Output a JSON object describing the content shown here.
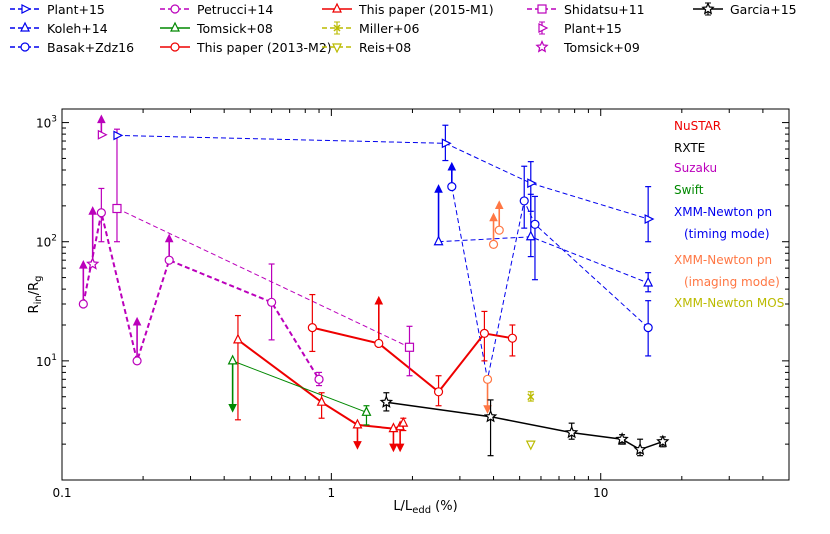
{
  "chart_data": {
    "type": "scatter",
    "title": "",
    "xlabel": "L/L",
    "xlabel_sub": "edd",
    "xlabel_unit": " (%)",
    "ylabel": "R",
    "ylabel_sub1": "in",
    "ylabel_slash": "/R",
    "ylabel_sub2": "g",
    "x_scale": "log",
    "y_scale": "log",
    "xlim": [
      0.1,
      50
    ],
    "ylim": [
      1,
      1300
    ],
    "xticks": [
      {
        "value": 0.1,
        "label": "0.1"
      },
      {
        "value": 1,
        "label": "1"
      },
      {
        "value": 10,
        "label": "10"
      }
    ],
    "yticks": [
      {
        "value": 10,
        "base": "10",
        "exp": "1"
      },
      {
        "value": 100,
        "base": "10",
        "exp": "2"
      },
      {
        "value": 1000,
        "base": "10",
        "exp": "3"
      }
    ],
    "legend": [
      {
        "label": "Plant+15",
        "color": "#0000ee",
        "marker": "tri-right",
        "dash": true,
        "line": true,
        "err": false
      },
      {
        "label": "Koleh+14",
        "color": "#0000ee",
        "marker": "tri-up",
        "dash": true,
        "line": true,
        "err": false
      },
      {
        "label": "Basak+Zdz16",
        "color": "#0000ee",
        "marker": "circle",
        "dash": true,
        "line": true,
        "err": false
      },
      {
        "label": "Petrucci+14",
        "color": "#bb00bb",
        "marker": "circle",
        "dash": true,
        "line": true,
        "err": false
      },
      {
        "label": "Tomsick+08",
        "color": "#008800",
        "marker": "tri-up",
        "dash": false,
        "line": true,
        "err": false
      },
      {
        "label": "This paper (2013-M2)",
        "color": "#ee0000",
        "marker": "circle",
        "dash": false,
        "line": true,
        "err": false
      },
      {
        "label": "This paper (2015-M1)",
        "color": "#ee0000",
        "marker": "tri-up",
        "dash": false,
        "line": true,
        "err": false
      },
      {
        "label": "Miller+06",
        "color": "#bbbb00",
        "marker": "x",
        "dash": true,
        "line": true,
        "err": true
      },
      {
        "label": "Reis+08",
        "color": "#bbbb00",
        "marker": "tri-down",
        "dash": true,
        "line": true,
        "err": false
      },
      {
        "label": "Shidatsu+11",
        "color": "#bb00bb",
        "marker": "square",
        "dash": true,
        "line": true,
        "err": false
      },
      {
        "label": "Plant+15",
        "color": "#bb00bb",
        "marker": "tri-right",
        "dash": false,
        "line": false,
        "err": true
      },
      {
        "label": "Tomsick+09",
        "color": "#bb00bb",
        "marker": "star",
        "dash": false,
        "line": false,
        "err": false
      },
      {
        "label": "Garcia+15",
        "color": "#000000",
        "marker": "star",
        "dash": false,
        "line": true,
        "err": true
      }
    ],
    "annotations": [
      {
        "text": "NuSTAR",
        "color": "#ee0000"
      },
      {
        "text": "RXTE",
        "color": "#000000"
      },
      {
        "text": "Suzaku",
        "color": "#bb00bb"
      },
      {
        "text": "Swift",
        "color": "#008800"
      },
      {
        "text": "XMM-Newton pn",
        "color": "#0000ee"
      },
      {
        "text": "(timing mode)",
        "color": "#0000ee"
      },
      {
        "text": "XMM-Newton pn",
        "color": "#ff7744"
      },
      {
        "text": "(imaging mode)",
        "color": "#ff7744"
      },
      {
        "text": "XMM-Newton MOS",
        "color": "#bbbb00"
      }
    ],
    "series": [
      {
        "name": "Petrucci+14",
        "color": "#bb00bb",
        "marker": "circle",
        "line": "dashed",
        "lw": 2,
        "points": [
          {
            "x": 0.12,
            "y": 30,
            "type": "lower",
            "to": 60
          },
          {
            "x": 0.14,
            "y": 175,
            "lo": 100,
            "hi": 280
          },
          {
            "x": 0.19,
            "y": 10,
            "type": "lower",
            "to": 20
          },
          {
            "x": 0.25,
            "y": 70,
            "type": "lower",
            "to": 100
          },
          {
            "x": 0.6,
            "y": 31,
            "lo": 15,
            "hi": 65
          },
          {
            "x": 0.9,
            "y": 7,
            "lo": 6.2,
            "hi": 8
          }
        ]
      },
      {
        "name": "Shidatsu+11",
        "color": "#bb00bb",
        "marker": "square",
        "line": "dashed",
        "lw": 1,
        "points": [
          {
            "x": 0.16,
            "y": 190,
            "lo": 100,
            "hi": 880
          },
          {
            "x": 1.95,
            "y": 13,
            "lo": 7.5,
            "hi": 19.5
          }
        ]
      },
      {
        "name": "Plant+15 (Suzaku)",
        "color": "#bb00bb",
        "marker": "tri-right",
        "line": "none",
        "points": [
          {
            "x": 0.14,
            "y": 790,
            "type": "lower",
            "to": 1000
          }
        ]
      },
      {
        "name": "Tomsick+09",
        "color": "#bb00bb",
        "marker": "star",
        "line": "none",
        "points": [
          {
            "x": 0.13,
            "y": 65,
            "type": "lower",
            "to": 170
          }
        ]
      },
      {
        "name": "Plant+15",
        "color": "#0000ee",
        "marker": "tri-right",
        "line": "dashed",
        "lw": 1,
        "points": [
          {
            "x": 0.16,
            "y": 780
          },
          {
            "x": 2.65,
            "y": 670,
            "lo": 480,
            "hi": 950
          },
          {
            "x": 5.5,
            "y": 310,
            "lo": 180,
            "hi": 470
          },
          {
            "x": 15,
            "y": 155,
            "lo": 100,
            "hi": 290
          }
        ]
      },
      {
        "name": "Koleh+14",
        "color": "#0000ee",
        "marker": "tri-up",
        "line": "dashed",
        "lw": 1,
        "points": [
          {
            "x": 2.5,
            "y": 100,
            "type": "lower",
            "to": 260
          },
          {
            "x": 5.5,
            "y": 110,
            "lo": 75,
            "hi": 250
          },
          {
            "x": 15,
            "y": 45,
            "lo": 38,
            "hi": 55
          }
        ]
      },
      {
        "name": "Basak+Zdz16",
        "color": "#0000ee",
        "marker": "circle",
        "line": "dashed",
        "lw": 1,
        "points": [
          {
            "x": 2.8,
            "y": 290,
            "type": "lower",
            "to": 400
          },
          {
            "x": 3.8,
            "y": 7,
            "type": "xonly"
          },
          {
            "x": 5.2,
            "y": 220,
            "lo": 130,
            "hi": 430
          },
          {
            "x": 5.7,
            "y": 140,
            "lo": 48,
            "hi": 240
          },
          {
            "x": 15,
            "y": 19,
            "lo": 11,
            "hi": 32
          }
        ]
      },
      {
        "name": "XMM-Newton pn (imaging mode)",
        "color": "#ff7744",
        "marker": "circle",
        "line": "none",
        "lw": 1,
        "points": [
          {
            "x": 3.8,
            "y": 7,
            "type": "upper",
            "to": 4.2
          },
          {
            "x": 4.0,
            "y": 95,
            "type": "lower",
            "to": 150
          },
          {
            "x": 4.2,
            "y": 125,
            "type": "lower",
            "to": 190
          }
        ]
      },
      {
        "name": "This paper (2013-M2)",
        "color": "#ee0000",
        "marker": "circle",
        "line": "solid",
        "lw": 2,
        "points": [
          {
            "x": 0.85,
            "y": 19,
            "lo": 12,
            "hi": 36
          },
          {
            "x": 1.5,
            "y": 14,
            "type": "lower",
            "to": 30
          },
          {
            "x": 2.5,
            "y": 5.5,
            "lo": 4.2,
            "hi": 7.5
          },
          {
            "x": 3.7,
            "y": 17,
            "lo": 10,
            "hi": 26
          },
          {
            "x": 4.7,
            "y": 15.5,
            "lo": 11,
            "hi": 20
          }
        ]
      },
      {
        "name": "This paper (2015-M1)",
        "color": "#ee0000",
        "marker": "tri-up",
        "line": "solid",
        "lw": 2,
        "points": [
          {
            "x": 0.45,
            "y": 15,
            "lo": 3.2,
            "hi": 24
          },
          {
            "x": 0.92,
            "y": 4.5,
            "lo": 3.3,
            "hi": 5.4
          },
          {
            "x": 1.25,
            "y": 2.9,
            "type": "upper",
            "to": 2.1
          },
          {
            "x": 1.7,
            "y": 2.7,
            "type": "upper",
            "to": 2.0
          },
          {
            "x": 1.8,
            "y": 2.8,
            "type": "upper",
            "to": 2.0
          },
          {
            "x": 1.85,
            "y": 3.0,
            "lo": 2.6,
            "hi": 3.3
          }
        ]
      },
      {
        "name": "Tomsick+08",
        "color": "#008800",
        "marker": "tri-up",
        "line": "solid",
        "lw": 1,
        "points": [
          {
            "x": 0.43,
            "y": 10,
            "type": "upper",
            "to": 4.3
          },
          {
            "x": 1.35,
            "y": 3.7,
            "lo": 2.9,
            "hi": 4.2
          }
        ]
      },
      {
        "name": "Garcia+15",
        "color": "#000000",
        "marker": "star",
        "line": "solid",
        "lw": 1.5,
        "points": [
          {
            "x": 1.6,
            "y": 4.5,
            "lo": 3.8,
            "hi": 5.4
          },
          {
            "x": 3.9,
            "y": 3.4,
            "lo": 1.6,
            "hi": 4.7
          },
          {
            "x": 7.8,
            "y": 2.5,
            "lo": 2.2,
            "hi": 3.0
          },
          {
            "x": 12,
            "y": 2.2,
            "lo": 2.0,
            "hi": 2.4
          },
          {
            "x": 14,
            "y": 1.8,
            "lo": 1.6,
            "hi": 2.2
          },
          {
            "x": 17,
            "y": 2.1,
            "lo": 1.9,
            "hi": 2.3
          }
        ]
      },
      {
        "name": "Miller+06",
        "color": "#bbbb00",
        "marker": "x",
        "line": "none",
        "points": [
          {
            "x": 5.5,
            "y": 5.0,
            "lo": 4.6,
            "hi": 5.5
          }
        ]
      },
      {
        "name": "Reis+08",
        "color": "#bbbb00",
        "marker": "tri-down",
        "line": "none",
        "points": [
          {
            "x": 5.5,
            "y": 2.0
          }
        ]
      }
    ]
  }
}
